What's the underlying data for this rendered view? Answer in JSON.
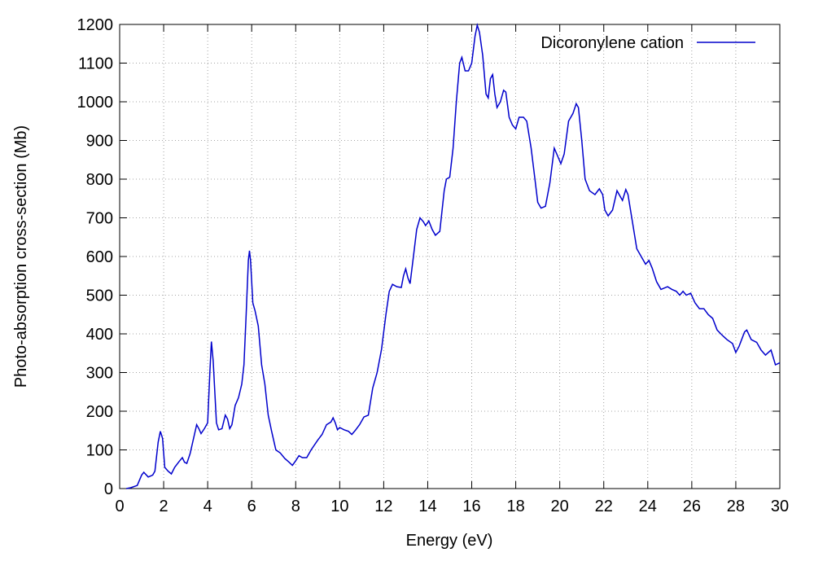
{
  "chart_data": {
    "type": "line",
    "xlabel": "Energy (eV)",
    "ylabel": "Photo-absorption cross-section (Mb)",
    "xlim": [
      0,
      30
    ],
    "xticks": [
      0,
      2,
      4,
      6,
      8,
      10,
      12,
      14,
      16,
      18,
      20,
      22,
      24,
      26,
      28,
      30
    ],
    "ylim": [
      0,
      1200
    ],
    "yticks": [
      0,
      100,
      200,
      300,
      400,
      500,
      600,
      700,
      800,
      900,
      1000,
      1100,
      1200
    ],
    "grid": true,
    "legend": "top-right",
    "x": [
      0.3,
      0.5,
      0.8,
      1.0,
      1.1,
      1.3,
      1.5,
      1.6,
      1.75,
      1.85,
      1.95,
      2.05,
      2.2,
      2.35,
      2.5,
      2.7,
      2.85,
      2.95,
      3.05,
      3.2,
      3.4,
      3.5,
      3.6,
      3.7,
      3.85,
      4.0,
      4.1,
      4.17,
      4.25,
      4.4,
      4.5,
      4.65,
      4.8,
      4.9,
      5.0,
      5.1,
      5.25,
      5.4,
      5.55,
      5.65,
      5.75,
      5.85,
      5.9,
      5.95,
      6.05,
      6.15,
      6.3,
      6.45,
      6.6,
      6.75,
      6.9,
      7.1,
      7.3,
      7.5,
      7.7,
      7.85,
      8.0,
      8.15,
      8.3,
      8.5,
      8.7,
      9.0,
      9.2,
      9.4,
      9.6,
      9.7,
      9.8,
      9.9,
      10.0,
      10.2,
      10.4,
      10.55,
      10.7,
      10.9,
      11.1,
      11.3,
      11.5,
      11.7,
      11.9,
      12.1,
      12.25,
      12.4,
      12.6,
      12.8,
      12.9,
      13.0,
      13.1,
      13.2,
      13.35,
      13.5,
      13.65,
      13.8,
      13.9,
      14.05,
      14.2,
      14.35,
      14.55,
      14.75,
      14.85,
      15.0,
      15.15,
      15.3,
      15.45,
      15.55,
      15.7,
      15.85,
      16.0,
      16.15,
      16.25,
      16.35,
      16.5,
      16.65,
      16.75,
      16.85,
      16.95,
      17.05,
      17.15,
      17.3,
      17.45,
      17.55,
      17.7,
      17.85,
      18.0,
      18.15,
      18.35,
      18.5,
      18.7,
      18.85,
      19.0,
      19.15,
      19.35,
      19.55,
      19.75,
      19.9,
      20.05,
      20.2,
      20.4,
      20.6,
      20.75,
      20.85,
      21.0,
      21.15,
      21.35,
      21.6,
      21.8,
      21.95,
      22.05,
      22.2,
      22.4,
      22.6,
      22.75,
      22.85,
      23.0,
      23.1,
      23.3,
      23.5,
      23.7,
      23.9,
      24.05,
      24.2,
      24.4,
      24.6,
      24.9,
      25.1,
      25.3,
      25.45,
      25.6,
      25.75,
      25.95,
      26.15,
      26.35,
      26.55,
      26.75,
      26.95,
      27.15,
      27.35,
      27.6,
      27.85,
      28.0,
      28.15,
      28.4,
      28.5,
      28.7,
      28.95,
      29.15,
      29.35,
      29.6,
      29.8,
      30.0
    ],
    "series": [
      {
        "name": "Dicoronylene cation",
        "color": "#0000cc",
        "values": [
          0,
          2,
          8,
          35,
          42,
          30,
          35,
          45,
          120,
          148,
          130,
          55,
          45,
          38,
          55,
          70,
          80,
          68,
          65,
          90,
          140,
          165,
          155,
          142,
          155,
          170,
          300,
          380,
          330,
          170,
          152,
          155,
          190,
          180,
          155,
          165,
          215,
          235,
          270,
          320,
          450,
          590,
          615,
          590,
          480,
          460,
          420,
          320,
          270,
          190,
          150,
          100,
          92,
          78,
          68,
          60,
          72,
          85,
          80,
          80,
          100,
          125,
          140,
          165,
          172,
          183,
          170,
          152,
          158,
          152,
          148,
          140,
          150,
          165,
          185,
          190,
          260,
          300,
          360,
          450,
          510,
          528,
          522,
          520,
          550,
          568,
          545,
          530,
          600,
          670,
          700,
          690,
          680,
          692,
          670,
          655,
          665,
          770,
          800,
          805,
          880,
          1000,
          1100,
          1115,
          1080,
          1080,
          1100,
          1170,
          1198,
          1180,
          1120,
          1020,
          1010,
          1060,
          1070,
          1020,
          985,
          1000,
          1030,
          1025,
          960,
          940,
          930,
          960,
          960,
          950,
          880,
          810,
          740,
          725,
          730,
          790,
          880,
          860,
          840,
          865,
          950,
          970,
          995,
          985,
          900,
          800,
          770,
          760,
          775,
          760,
          720,
          705,
          720,
          770,
          755,
          745,
          773,
          760,
          690,
          620,
          600,
          580,
          590,
          570,
          535,
          515,
          522,
          515,
          510,
          500,
          510,
          500,
          505,
          480,
          465,
          465,
          450,
          440,
          410,
          398,
          385,
          375,
          352,
          368,
          405,
          410,
          385,
          378,
          358,
          345,
          358,
          320,
          325
        ]
      }
    ]
  }
}
